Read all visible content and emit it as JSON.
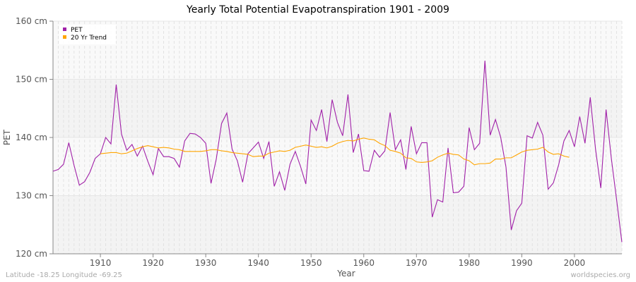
{
  "chart_data": {
    "type": "line",
    "title": "Yearly Total Potential Evapotranspiration 1901 - 2009",
    "xlabel": "Year",
    "ylabel": "PET",
    "ylim": [
      120,
      160
    ],
    "xlim": [
      1901,
      2009
    ],
    "yticks": [
      "120 cm",
      "130 cm",
      "140 cm",
      "150 cm",
      "160 cm"
    ],
    "ytick_values": [
      120,
      130,
      140,
      150,
      160
    ],
    "xticks": [
      "1910",
      "1920",
      "1930",
      "1940",
      "1950",
      "1960",
      "1970",
      "1980",
      "1990",
      "2000"
    ],
    "xtick_values": [
      1910,
      1920,
      1930,
      1940,
      1950,
      1960,
      1970,
      1980,
      1990,
      2000
    ],
    "legend": {
      "placement": "top-left",
      "entries": [
        "PET",
        "20 Yr Trend"
      ]
    },
    "series": [
      {
        "name": "PET",
        "color": "#a020a8",
        "start_year": 1901,
        "values": [
          134.2,
          134.5,
          135.4,
          139.1,
          135.2,
          131.8,
          132.4,
          134,
          136.4,
          137.2,
          140,
          138.9,
          149.1,
          140.6,
          137.8,
          138.8,
          136.8,
          138.5,
          135.9,
          133.6,
          138.1,
          136.7,
          136.7,
          136.4,
          134.9,
          139.4,
          140.7,
          140.6,
          140,
          139,
          132.1,
          136.3,
          142.4,
          144.2,
          138,
          136,
          132.3,
          137.2,
          138.2,
          139.2,
          136.4,
          139.3,
          131.6,
          134.1,
          130.9,
          135.4,
          137.6,
          135,
          132,
          143,
          141.2,
          144.8,
          139.3,
          146.5,
          142.6,
          140.3,
          147.4,
          137.4,
          140.6,
          134.3,
          134.2,
          137.8,
          136.6,
          137.7,
          144.3,
          137.9,
          139.6,
          134.5,
          141.9,
          137.2,
          139.1,
          139.1,
          126.3,
          129.3,
          128.9,
          138.2,
          130.5,
          130.6,
          131.6,
          141.7,
          137.9,
          139,
          153.2,
          140.4,
          143.1,
          140,
          134.9,
          124.1,
          127.4,
          128.7,
          140.3,
          139.9,
          142.6,
          140.4,
          131.1,
          132.2,
          135.3,
          139.4,
          141.2,
          138.4,
          143.6,
          139,
          146.9,
          138,
          131.3,
          144.8,
          136.4,
          129.3,
          122
        ]
      },
      {
        "name": "20 Yr Trend",
        "color": "#ffa500",
        "start_year": 1910,
        "values": [
          137.2,
          137.3,
          137.4,
          137.4,
          137.2,
          137.3,
          137.7,
          138.1,
          138.4,
          138.6,
          138.4,
          138.2,
          138.3,
          138.2,
          138,
          137.9,
          137.6,
          137.6,
          137.6,
          137.6,
          137.7,
          137.9,
          137.9,
          137.7,
          137.6,
          137.4,
          137.3,
          137.2,
          137.1,
          136.7,
          136.8,
          136.8,
          137.3,
          137.5,
          137.7,
          137.6,
          137.8,
          138.3,
          138.5,
          138.7,
          138.5,
          138.3,
          138.4,
          138.2,
          138.5,
          139,
          139.3,
          139.5,
          139.4,
          139.7,
          139.9,
          139.7,
          139.6,
          139,
          138.6,
          137.8,
          137.6,
          137.3,
          136.5,
          136.4,
          135.8,
          135.7,
          135.8,
          136,
          136.6,
          137,
          137.3,
          137.1,
          137,
          136.3,
          136,
          135.3,
          135.5,
          135.5,
          135.6,
          136.3,
          136.3,
          136.5,
          136.5,
          137,
          137.5,
          137.8,
          137.9,
          138,
          138.3,
          137.5,
          137.1,
          137.2,
          136.8,
          136.6
        ]
      }
    ]
  },
  "footer": {
    "left": "Latitude -18.25 Longitude -69.25",
    "right": "worldspecies.org"
  }
}
